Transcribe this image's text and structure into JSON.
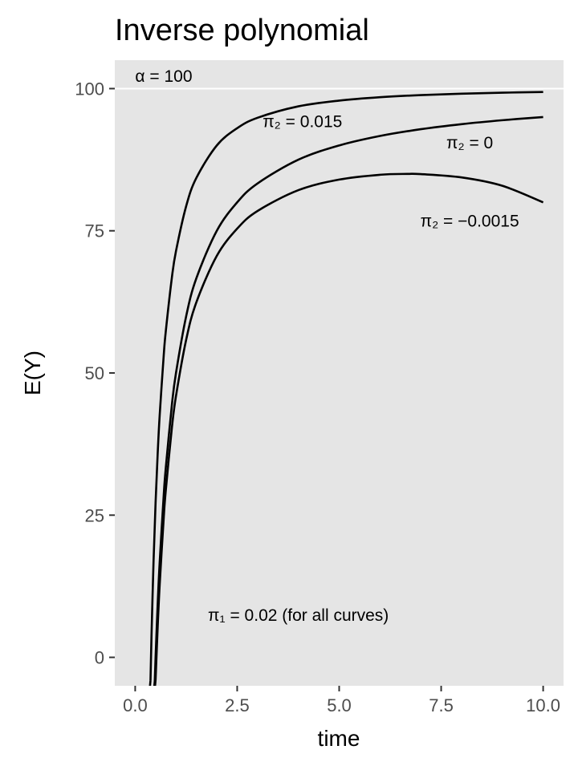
{
  "chart_data": {
    "type": "line",
    "title": "Inverse polynomial",
    "xlabel": "time",
    "ylabel": "E(Y)",
    "xlim": [
      -0.5,
      10.5
    ],
    "ylim": [
      -5,
      105
    ],
    "x_ticks": [
      "0.0",
      "2.5",
      "5.0",
      "7.5",
      "10.0"
    ],
    "x_tick_values": [
      0,
      2.5,
      5,
      7.5,
      10
    ],
    "y_ticks": [
      "0",
      "25",
      "50",
      "75",
      "100"
    ],
    "y_tick_values": [
      0,
      25,
      50,
      75,
      100
    ],
    "grid": false,
    "background": "#E5E5E5",
    "reference_line": {
      "y": 100,
      "color": "#FFFFFF"
    },
    "series": [
      {
        "color": "#000000",
        "x": [
          0.375,
          0.4,
          0.45,
          0.5,
          0.55,
          0.6,
          0.7,
          0.75,
          0.9,
          1,
          1.25,
          1.5,
          2,
          2.5,
          3,
          4,
          5,
          6,
          7,
          8,
          9,
          10
        ],
        "y": [
          -4.06,
          3.85,
          16.93,
          27.27,
          35.64,
          42.53,
          53.16,
          57.33,
          66.83,
          71.43,
          79.35,
          84.31,
          90,
          93.04,
          94.87,
          96.88,
          97.89,
          98.48,
          98.86,
          99.11,
          99.28,
          99.41
        ]
      },
      {
        "color": "#000000",
        "x": [
          0.48,
          0.5,
          0.55,
          0.6,
          0.7,
          0.75,
          0.9,
          1,
          1.25,
          1.5,
          2,
          2.5,
          3,
          4,
          5,
          6,
          7,
          8,
          9,
          10
        ],
        "y": [
          -4.17,
          0,
          9.09,
          16.67,
          28.57,
          33.33,
          44.44,
          50,
          60,
          66.67,
          75,
          80,
          83.33,
          87.5,
          90,
          91.67,
          92.86,
          93.75,
          94.44,
          95
        ]
      },
      {
        "color": "#000000",
        "x": [
          0.5,
          0.55,
          0.6,
          0.7,
          0.75,
          0.9,
          1,
          1.25,
          1.5,
          2,
          2.5,
          3,
          4,
          5,
          6,
          6.67,
          7,
          8,
          9,
          10
        ],
        "y": [
          -3.9,
          5.18,
          12.74,
          24.61,
          29.36,
          40.42,
          45.95,
          55.86,
          62.44,
          70.59,
          75.38,
          78.49,
          82.14,
          84,
          84.85,
          85,
          84.96,
          84.38,
          82.91,
          80
        ]
      }
    ],
    "annotations": [
      {
        "text": "α = 100",
        "x": 0,
        "y": 102.2,
        "anchor": "start"
      },
      {
        "text": "π₂ = 0.015",
        "x": 4.1,
        "y": 94.2,
        "anchor": "middle"
      },
      {
        "text": "π₂ = 0",
        "x": 8.2,
        "y": 90.5,
        "anchor": "middle"
      },
      {
        "text": "π₂ = −0.0015",
        "x": 8.2,
        "y": 76.7,
        "anchor": "middle"
      },
      {
        "text": "π₁ = 0.02 (for all curves)",
        "x": 4.0,
        "y": 7.4,
        "anchor": "middle"
      }
    ]
  }
}
